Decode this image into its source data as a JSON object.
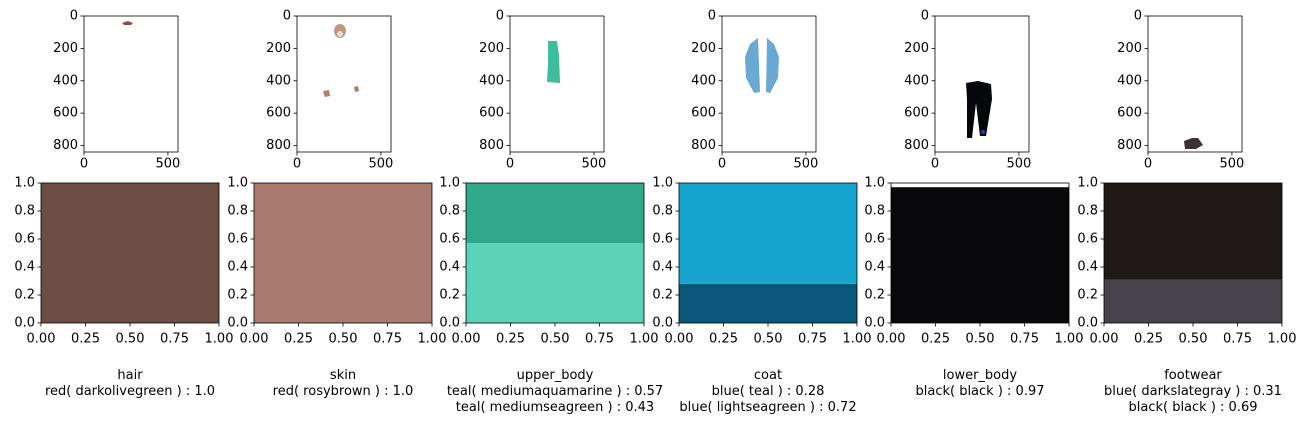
{
  "chart_data": [
    {
      "type": "image",
      "region": "hair",
      "image_axes": {
        "xticks": [
          0,
          500
        ],
        "yticks": [
          0,
          200,
          400,
          600,
          800
        ],
        "xlim": [
          0,
          560
        ],
        "ylim": [
          840,
          0
        ]
      },
      "color_bar": {
        "type": "stacked-bar",
        "xlim": [
          0,
          1
        ],
        "ylim": [
          0,
          1
        ],
        "xticks": [
          "0.00",
          "0.25",
          "0.50",
          "0.75",
          "1.00"
        ],
        "yticks": [
          "0.0",
          "0.2",
          "0.4",
          "0.6",
          "0.8",
          "1.0"
        ],
        "segments": [
          {
            "value": 1.0,
            "color": "#6c4e44"
          }
        ]
      },
      "caption": [
        "hair",
        "red( darkolivegreen ) : 1.0"
      ]
    },
    {
      "type": "image",
      "region": "skin",
      "image_axes": {
        "xticks": [
          0,
          500
        ],
        "yticks": [
          0,
          200,
          400,
          600,
          800
        ],
        "xlim": [
          0,
          560
        ],
        "ylim": [
          840,
          0
        ]
      },
      "color_bar": {
        "type": "stacked-bar",
        "xlim": [
          0,
          1
        ],
        "ylim": [
          0,
          1
        ],
        "xticks": [
          "0.00",
          "0.25",
          "0.50",
          "0.75",
          "1.00"
        ],
        "yticks": [
          "0.0",
          "0.2",
          "0.4",
          "0.6",
          "0.8",
          "1.0"
        ],
        "segments": [
          {
            "value": 1.0,
            "color": "#a97b6f"
          }
        ]
      },
      "caption": [
        "skin",
        "red( rosybrown ) : 1.0"
      ]
    },
    {
      "type": "image",
      "region": "upper_body",
      "image_axes": {
        "xticks": [
          0,
          500
        ],
        "yticks": [
          0,
          200,
          400,
          600,
          800
        ],
        "xlim": [
          0,
          560
        ],
        "ylim": [
          840,
          0
        ]
      },
      "color_bar": {
        "type": "stacked-bar",
        "xlim": [
          0,
          1
        ],
        "ylim": [
          0,
          1
        ],
        "xticks": [
          "0.00",
          "0.25",
          "0.50",
          "0.75",
          "1.00"
        ],
        "yticks": [
          "0.0",
          "0.2",
          "0.4",
          "0.6",
          "0.8",
          "1.0"
        ],
        "segments": [
          {
            "value": 0.57,
            "color": "#5ad3b7"
          },
          {
            "value": 0.43,
            "color": "#30a98b"
          }
        ]
      },
      "caption": [
        "upper_body",
        "teal( mediumaquamarine ) : 0.57",
        "teal( mediumseagreen ) : 0.43"
      ]
    },
    {
      "type": "image",
      "region": "coat",
      "image_axes": {
        "xticks": [
          0,
          500
        ],
        "yticks": [
          0,
          200,
          400,
          600,
          800
        ],
        "xlim": [
          0,
          560
        ],
        "ylim": [
          840,
          0
        ]
      },
      "color_bar": {
        "type": "stacked-bar",
        "xlim": [
          0,
          1
        ],
        "ylim": [
          0,
          1
        ],
        "xticks": [
          "0.00",
          "0.25",
          "0.50",
          "0.75",
          "1.00"
        ],
        "yticks": [
          "0.0",
          "0.2",
          "0.4",
          "0.6",
          "0.8",
          "1.0"
        ],
        "segments": [
          {
            "value": 0.28,
            "color": "#09587c"
          },
          {
            "value": 0.72,
            "color": "#16a5ce"
          }
        ]
      },
      "caption": [
        "coat",
        "blue( teal ) : 0.28",
        "blue( lightseagreen ) : 0.72"
      ]
    },
    {
      "type": "image",
      "region": "lower_body",
      "image_axes": {
        "xticks": [
          0,
          500
        ],
        "yticks": [
          0,
          200,
          400,
          600,
          800
        ],
        "xlim": [
          0,
          560
        ],
        "ylim": [
          840,
          0
        ]
      },
      "color_bar": {
        "type": "stacked-bar",
        "xlim": [
          0,
          1
        ],
        "ylim": [
          0,
          1
        ],
        "xticks": [
          "0.00",
          "0.25",
          "0.50",
          "0.75",
          "1.00"
        ],
        "yticks": [
          "0.0",
          "0.2",
          "0.4",
          "0.6",
          "0.8",
          "1.0"
        ],
        "segments": [
          {
            "value": 0.97,
            "color": "#09080b"
          }
        ]
      },
      "caption": [
        "lower_body",
        "black( black ) : 0.97"
      ]
    },
    {
      "type": "image",
      "region": "footwear",
      "image_axes": {
        "xticks": [
          0,
          500
        ],
        "yticks": [
          0,
          200,
          400,
          600,
          800
        ],
        "xlim": [
          0,
          560
        ],
        "ylim": [
          840,
          0
        ]
      },
      "color_bar": {
        "type": "stacked-bar",
        "xlim": [
          0,
          1
        ],
        "ylim": [
          0,
          1
        ],
        "xticks": [
          "0.00",
          "0.25",
          "0.50",
          "0.75",
          "1.00"
        ],
        "yticks": [
          "0.0",
          "0.2",
          "0.4",
          "0.6",
          "0.8",
          "1.0"
        ],
        "segments": [
          {
            "value": 0.31,
            "color": "#464449"
          },
          {
            "value": 0.69,
            "color": "#1d1917"
          }
        ]
      },
      "caption": [
        "footwear",
        "blue( darkslategray ) : 0.31",
        "black( black ) : 0.69"
      ]
    }
  ]
}
